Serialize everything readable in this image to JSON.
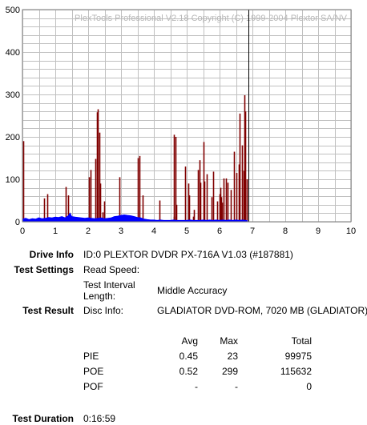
{
  "chart_data": {
    "type": "bar",
    "watermark": "PlexTools Professional V2.18 Copyright (C) 1999-2004 Plextor SA/NV",
    "xlim": [
      0,
      10
    ],
    "ylim": [
      0,
      500
    ],
    "xticks": [
      "0",
      "1",
      "2",
      "3",
      "4",
      "5",
      "6",
      "7",
      "8",
      "9",
      "10"
    ],
    "yticks": [
      "0",
      "100",
      "200",
      "300",
      "400",
      "500"
    ],
    "grid": true,
    "cursor_x": 6.88,
    "colors": {
      "poe": "#800000",
      "pie": "#0000ff",
      "cursor": "#000000",
      "grid": "#c0c0c0"
    },
    "series": [
      {
        "name": "POE",
        "points": [
          [
            0.02,
            190
          ],
          [
            0.65,
            55
          ],
          [
            0.75,
            65
          ],
          [
            1.32,
            82
          ],
          [
            1.38,
            62
          ],
          [
            2.03,
            105
          ],
          [
            2.07,
            122
          ],
          [
            2.22,
            148
          ],
          [
            2.27,
            258
          ],
          [
            2.3,
            265
          ],
          [
            2.33,
            210
          ],
          [
            2.37,
            90
          ],
          [
            2.45,
            22
          ],
          [
            2.48,
            48
          ],
          [
            2.95,
            105
          ],
          [
            3.52,
            150
          ],
          [
            3.55,
            155
          ],
          [
            3.65,
            62
          ],
          [
            4.18,
            50
          ],
          [
            4.6,
            12
          ],
          [
            4.62,
            205
          ],
          [
            4.65,
            200
          ],
          [
            4.68,
            40
          ],
          [
            4.95,
            130
          ],
          [
            5.05,
            90
          ],
          [
            5.08,
            62
          ],
          [
            5.2,
            12
          ],
          [
            5.23,
            28
          ],
          [
            5.35,
            122
          ],
          [
            5.38,
            145
          ],
          [
            5.42,
            92
          ],
          [
            5.5,
            188
          ],
          [
            5.53,
            95
          ],
          [
            5.6,
            112
          ],
          [
            5.75,
            58
          ],
          [
            5.8,
            118
          ],
          [
            5.92,
            48
          ],
          [
            6.0,
            65
          ],
          [
            6.02,
            80
          ],
          [
            6.05,
            58
          ],
          [
            6.08,
            45
          ],
          [
            6.12,
            102
          ],
          [
            6.2,
            102
          ],
          [
            6.25,
            92
          ],
          [
            6.35,
            75
          ],
          [
            6.45,
            165
          ],
          [
            6.52,
            115
          ],
          [
            6.58,
            135
          ],
          [
            6.62,
            255
          ],
          [
            6.68,
            180
          ],
          [
            6.72,
            120
          ],
          [
            6.75,
            298
          ],
          [
            6.78,
            260
          ],
          [
            6.82,
            100
          ]
        ]
      },
      {
        "name": "PIE",
        "max": 23,
        "points": [
          [
            0.0,
            6
          ],
          [
            0.1,
            8
          ],
          [
            0.2,
            5
          ],
          [
            0.3,
            7
          ],
          [
            0.4,
            6
          ],
          [
            0.5,
            9
          ],
          [
            0.6,
            7
          ],
          [
            0.7,
            8
          ],
          [
            0.8,
            10
          ],
          [
            0.9,
            9
          ],
          [
            1.0,
            11
          ],
          [
            1.1,
            10
          ],
          [
            1.2,
            12
          ],
          [
            1.3,
            9
          ],
          [
            1.4,
            14
          ],
          [
            1.45,
            20
          ],
          [
            1.5,
            12
          ],
          [
            1.6,
            11
          ],
          [
            1.7,
            10
          ],
          [
            1.8,
            9
          ],
          [
            1.9,
            8
          ],
          [
            2.0,
            9
          ],
          [
            2.1,
            8
          ],
          [
            2.2,
            7
          ],
          [
            2.3,
            8
          ],
          [
            2.4,
            9
          ],
          [
            2.5,
            7
          ],
          [
            2.6,
            8
          ],
          [
            2.7,
            9
          ],
          [
            2.8,
            12
          ],
          [
            2.9,
            13
          ],
          [
            3.0,
            15
          ],
          [
            3.1,
            16
          ],
          [
            3.2,
            15
          ],
          [
            3.3,
            14
          ],
          [
            3.4,
            12
          ],
          [
            3.5,
            10
          ],
          [
            3.6,
            9
          ],
          [
            3.7,
            6
          ],
          [
            3.8,
            5
          ],
          [
            3.9,
            4
          ],
          [
            4.0,
            4
          ],
          [
            4.1,
            3
          ],
          [
            4.2,
            4
          ],
          [
            4.3,
            3
          ],
          [
            4.4,
            3
          ],
          [
            4.5,
            3
          ],
          [
            4.6,
            4
          ],
          [
            4.7,
            3
          ],
          [
            4.8,
            3
          ],
          [
            4.9,
            3
          ],
          [
            5.0,
            3
          ],
          [
            5.1,
            4
          ],
          [
            5.2,
            3
          ],
          [
            5.3,
            3
          ],
          [
            5.4,
            3
          ],
          [
            5.5,
            4
          ],
          [
            5.6,
            3
          ],
          [
            5.7,
            4
          ],
          [
            5.8,
            3
          ],
          [
            5.9,
            4
          ],
          [
            6.0,
            3
          ],
          [
            6.1,
            4
          ],
          [
            6.2,
            3
          ],
          [
            6.3,
            4
          ],
          [
            6.4,
            3
          ],
          [
            6.5,
            4
          ],
          [
            6.6,
            3
          ],
          [
            6.7,
            4
          ],
          [
            6.8,
            3
          ],
          [
            6.85,
            2
          ]
        ]
      }
    ]
  },
  "info": {
    "drive_info_label": "Drive Info",
    "drive_info_value": "ID:0 PLEXTOR DVDR PX-716A V1.03 (#187881)",
    "test_settings_label": "Test Settings",
    "read_speed_label": "Read Speed:",
    "interval_label_1": "Test Interval",
    "interval_label_2": "Length:",
    "interval_value": "Middle Accuracy",
    "test_result_label": "Test Result",
    "disc_info_label": "Disc Info:",
    "disc_info_value": "GLADIATOR DVD-ROM, 7020 MB (GLADIATOR)",
    "table": {
      "headers": [
        "Avg",
        "Max",
        "Total"
      ],
      "rows": [
        {
          "name": "PIE",
          "avg": "0.45",
          "max": "23",
          "total": "99975"
        },
        {
          "name": "POE",
          "avg": "0.52",
          "max": "299",
          "total": "115632"
        },
        {
          "name": "POF",
          "avg": "-",
          "max": "-",
          "total": "0"
        }
      ]
    },
    "duration_label": "Test Duration",
    "duration_value": "0:16:59"
  }
}
